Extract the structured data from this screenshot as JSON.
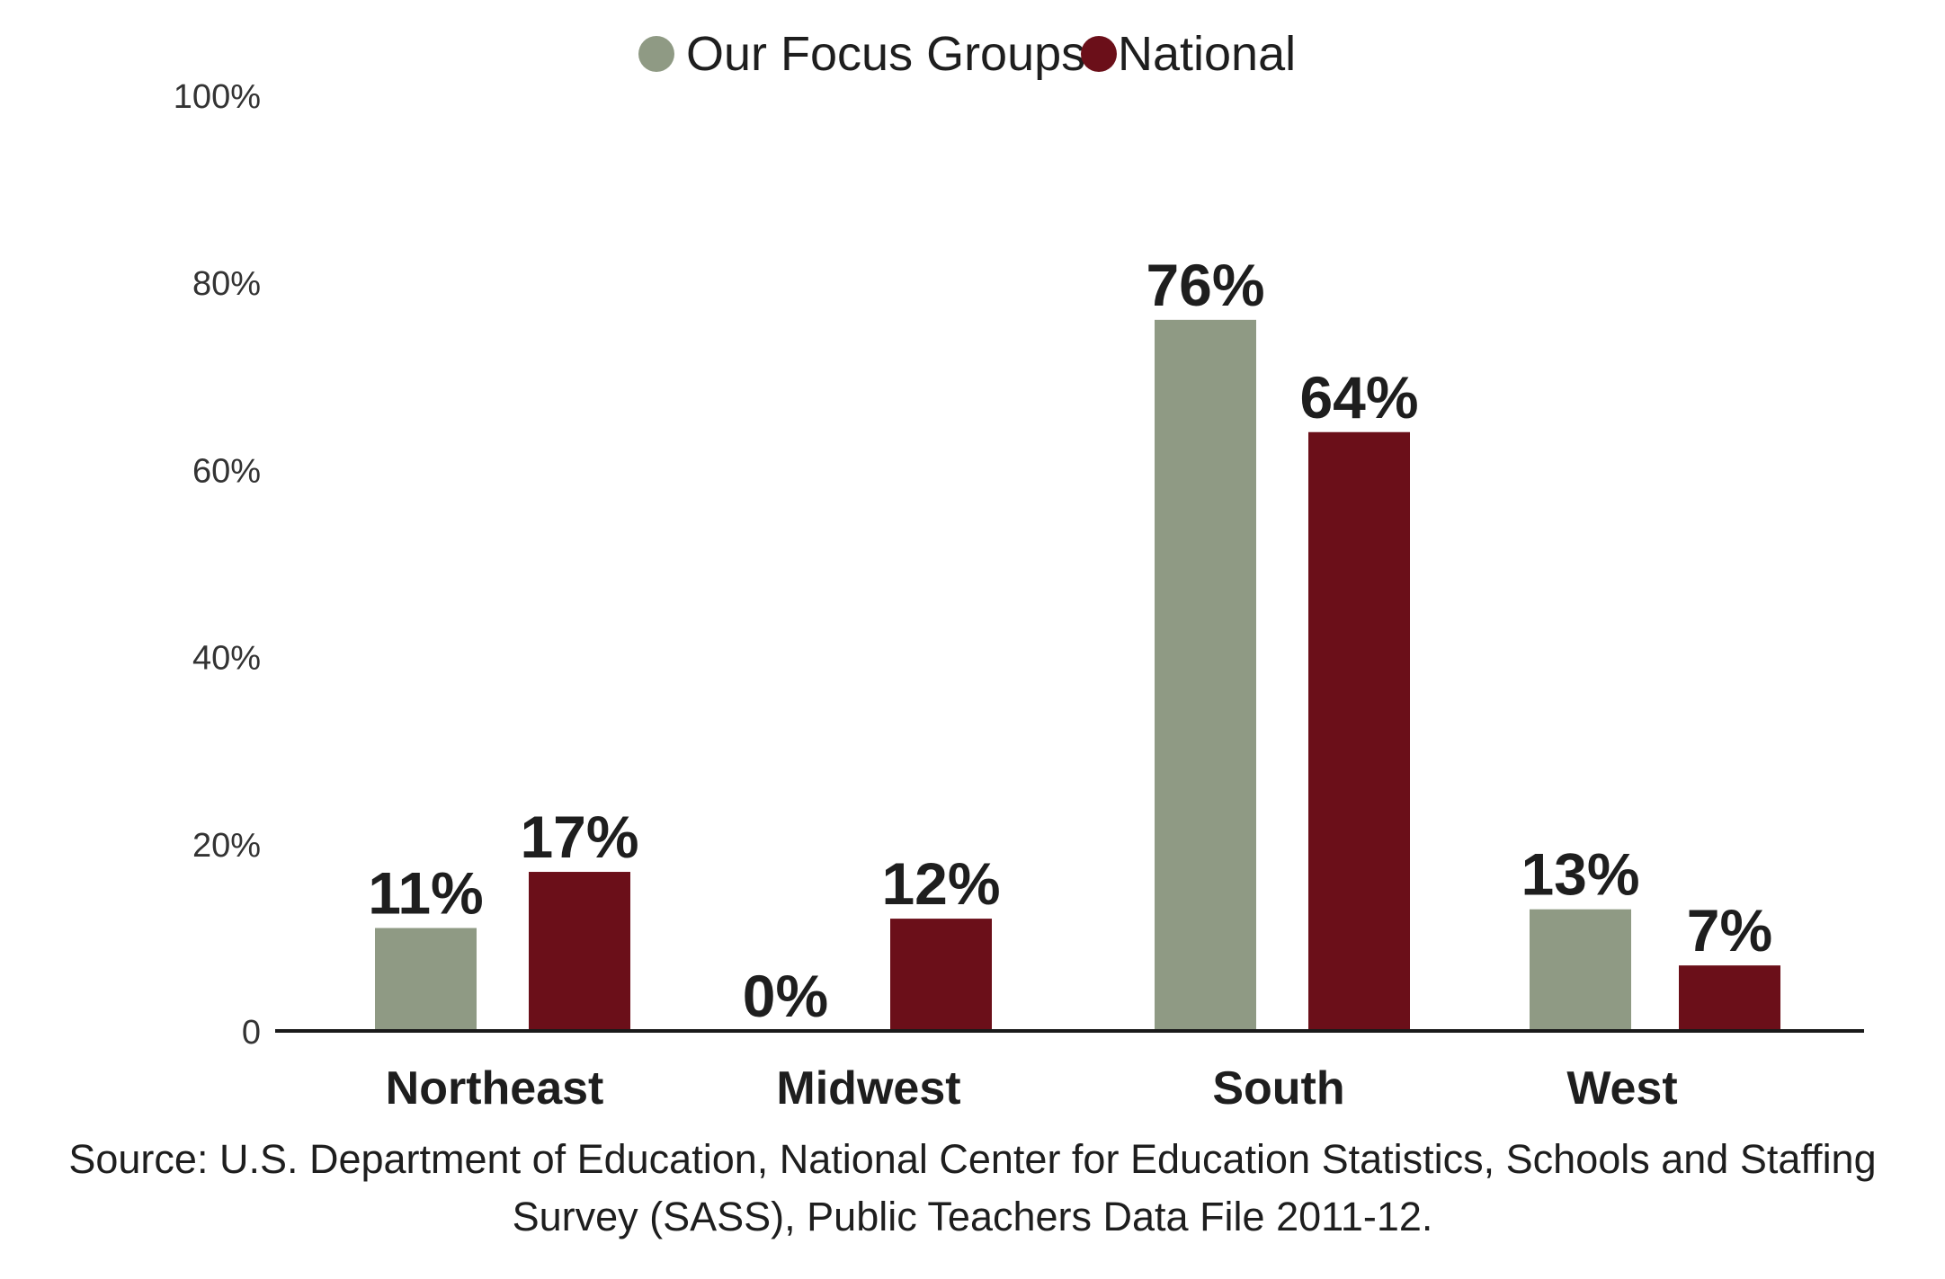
{
  "chart_data": {
    "type": "bar",
    "categories": [
      "Northeast",
      "Midwest",
      "South",
      "West"
    ],
    "series": [
      {
        "name": "Our Focus Groups",
        "values": [
          11,
          0,
          76,
          13
        ],
        "labels": [
          "11%",
          "0%",
          "76%",
          "13%"
        ],
        "color": "#8f9a84"
      },
      {
        "name": "National",
        "values": [
          17,
          12,
          64,
          7
        ],
        "labels": [
          "17%",
          "12%",
          "64%",
          "7%"
        ],
        "color": "#6b0f19"
      }
    ],
    "yticks": [
      {
        "value": 0,
        "label": "0"
      },
      {
        "value": 20,
        "label": "20%"
      },
      {
        "value": 40,
        "label": "40%"
      },
      {
        "value": 60,
        "label": "60%"
      },
      {
        "value": 80,
        "label": "80%"
      },
      {
        "value": 100,
        "label": "100%"
      }
    ],
    "ylim": [
      0,
      100
    ],
    "grid": false,
    "legend_position": "top-center"
  },
  "source_lines": [
    "Source: U.S. Department of Education, National Center for Education Statistics, Schools and Staffing",
    "Survey (SASS), Public Teachers Data File 2011-12."
  ]
}
